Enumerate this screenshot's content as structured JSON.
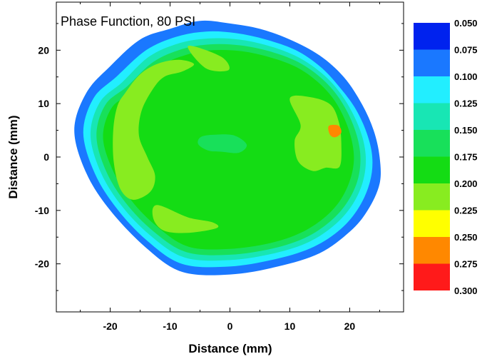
{
  "chart_data": {
    "type": "heatmap",
    "title": "Phase Function, 80 PSI",
    "xlabel": "Distance (mm)",
    "ylabel": "Distance (mm)",
    "xlim": [
      -29,
      29
    ],
    "ylim": [
      -29,
      29
    ],
    "x_ticks": [
      -20,
      -10,
      0,
      10,
      20
    ],
    "y_ticks": [
      20,
      10,
      0,
      -10,
      -20
    ],
    "x_tick_labels": [
      "-20",
      "-10",
      "0",
      "10",
      "20"
    ],
    "y_tick_labels": [
      "20",
      "10",
      "0",
      "-10",
      "-20"
    ],
    "grid": false,
    "legend_placement": "right",
    "colorbar": {
      "levels": [
        "0.050",
        "0.075",
        "0.100",
        "0.125",
        "0.150",
        "0.175",
        "0.200",
        "0.225",
        "0.250",
        "0.275",
        "0.300"
      ],
      "colors": [
        "#0022ee",
        "#1a78ff",
        "#22eeff",
        "#18e6b4",
        "#18e05a",
        "#14dc14",
        "#88ec20",
        "#ffff00",
        "#ff8800",
        "#ff1a1a"
      ]
    },
    "contours": [
      {
        "level": 0.075,
        "points": [
          [
            -20,
            17
          ],
          [
            -15,
            22
          ],
          [
            -10,
            24
          ],
          [
            -5,
            25.5
          ],
          [
            0,
            25
          ],
          [
            5,
            24
          ],
          [
            10,
            22
          ],
          [
            15,
            19
          ],
          [
            19,
            15
          ],
          [
            22,
            10
          ],
          [
            24,
            5
          ],
          [
            25,
            0
          ],
          [
            25,
            -5
          ],
          [
            23,
            -10
          ],
          [
            20,
            -14
          ],
          [
            15,
            -18
          ],
          [
            8,
            -20.5
          ],
          [
            0,
            -22
          ],
          [
            -8,
            -21.5
          ],
          [
            -14,
            -17
          ],
          [
            -20,
            -10
          ],
          [
            -24,
            -3
          ],
          [
            -26,
            5
          ],
          [
            -24,
            12
          ]
        ]
      },
      {
        "level": 0.1,
        "points": [
          [
            -19,
            15
          ],
          [
            -14,
            20
          ],
          [
            -9,
            22.5
          ],
          [
            -4,
            23.5
          ],
          [
            1,
            23.2
          ],
          [
            6,
            22
          ],
          [
            11,
            20
          ],
          [
            15,
            17
          ],
          [
            18,
            13.5
          ],
          [
            21,
            9
          ],
          [
            23,
            4
          ],
          [
            23.8,
            -0.5
          ],
          [
            23.3,
            -5
          ],
          [
            21.5,
            -9.5
          ],
          [
            18.5,
            -13.5
          ],
          [
            14,
            -16.8
          ],
          [
            8,
            -19
          ],
          [
            0,
            -20.5
          ],
          [
            -8,
            -20
          ],
          [
            -14,
            -15.5
          ],
          [
            -19,
            -9.5
          ],
          [
            -22.6,
            -3
          ],
          [
            -24.5,
            4.5
          ],
          [
            -22.8,
            11
          ]
        ]
      },
      {
        "level": 0.125,
        "points": [
          [
            -18,
            14
          ],
          [
            -13.5,
            18.8
          ],
          [
            -8.5,
            21.3
          ],
          [
            -3.5,
            22.2
          ],
          [
            1.5,
            22
          ],
          [
            6.5,
            20.8
          ],
          [
            11.2,
            18.8
          ],
          [
            15,
            16
          ],
          [
            18,
            12.6
          ],
          [
            20.4,
            8.4
          ],
          [
            22.1,
            3.8
          ],
          [
            22.7,
            -0.6
          ],
          [
            22.1,
            -5
          ],
          [
            20.3,
            -9.2
          ],
          [
            17.4,
            -12.8
          ],
          [
            13.2,
            -15.9
          ],
          [
            7.5,
            -18
          ],
          [
            0,
            -19.3
          ],
          [
            -7.6,
            -18.8
          ],
          [
            -13.4,
            -14.6
          ],
          [
            -18.2,
            -9
          ],
          [
            -21.6,
            -2.8
          ],
          [
            -23.3,
            4.2
          ],
          [
            -21.7,
            10.3
          ]
        ]
      },
      {
        "level": 0.15,
        "points": [
          [
            -17.2,
            13.2
          ],
          [
            -12.8,
            17.8
          ],
          [
            -8,
            20.2
          ],
          [
            -3.2,
            21.1
          ],
          [
            1.8,
            20.9
          ],
          [
            6.6,
            19.8
          ],
          [
            11,
            18
          ],
          [
            14.7,
            15.3
          ],
          [
            17.6,
            12
          ],
          [
            19.8,
            8
          ],
          [
            21.3,
            3.6
          ],
          [
            21.8,
            -0.6
          ],
          [
            21.2,
            -4.8
          ],
          [
            19.4,
            -8.8
          ],
          [
            16.6,
            -12.2
          ],
          [
            12.6,
            -15.1
          ],
          [
            7.2,
            -17.1
          ],
          [
            0,
            -18.3
          ],
          [
            -7.3,
            -17.8
          ],
          [
            -12.8,
            -13.9
          ],
          [
            -17.4,
            -8.6
          ],
          [
            -20.7,
            -2.6
          ],
          [
            -22.3,
            4
          ],
          [
            -20.8,
            9.8
          ]
        ]
      },
      {
        "level": 0.175,
        "points": [
          [
            -16.2,
            12.2
          ],
          [
            -12,
            16.8
          ],
          [
            -7.4,
            19.1
          ],
          [
            -2.8,
            20
          ],
          [
            2,
            19.8
          ],
          [
            6.6,
            18.7
          ],
          [
            10.8,
            17
          ],
          [
            14.2,
            14.5
          ],
          [
            17,
            11.3
          ],
          [
            19,
            7.5
          ],
          [
            20.3,
            3.3
          ],
          [
            20.7,
            -0.6
          ],
          [
            20,
            -4.5
          ],
          [
            18.3,
            -8.3
          ],
          [
            15.6,
            -11.5
          ],
          [
            11.8,
            -14.2
          ],
          [
            6.8,
            -16.1
          ],
          [
            0,
            -17.2
          ],
          [
            -6.9,
            -16.8
          ],
          [
            -12.1,
            -13.1
          ],
          [
            -16.5,
            -8.1
          ],
          [
            -19.6,
            -2.4
          ],
          [
            -21.2,
            3.8
          ],
          [
            -19.7,
            9.3
          ]
        ]
      },
      {
        "level": 0.2,
        "points": [
          [
            -17.5,
            12
          ],
          [
            -15,
            15.5
          ],
          [
            -12,
            17.5
          ],
          [
            -8.5,
            18.2
          ],
          [
            -6,
            17.4
          ],
          [
            -8,
            16
          ],
          [
            -11,
            15
          ],
          [
            -13,
            12.5
          ],
          [
            -14.8,
            8.5
          ],
          [
            -15.2,
            4
          ],
          [
            -13.8,
            0
          ],
          [
            -12.5,
            -3.5
          ],
          [
            -13.3,
            -6.5
          ],
          [
            -16.2,
            -8
          ],
          [
            -18.3,
            -6
          ],
          [
            -19.4,
            -1
          ],
          [
            -19.5,
            5
          ],
          [
            -18.8,
            9.5
          ]
        ]
      },
      {
        "level": 0.2,
        "points": [
          [
            -7,
            20.8
          ],
          [
            -1.5,
            18.8
          ],
          [
            -0.2,
            16.3
          ],
          [
            -4,
            16.6
          ]
        ]
      },
      {
        "level": 0.2,
        "points": [
          [
            -12.2,
            -9
          ],
          [
            -7,
            -11.3
          ],
          [
            -3,
            -12.2
          ],
          [
            -2.2,
            -13.3
          ],
          [
            -7,
            -14.2
          ],
          [
            -11,
            -13.8
          ],
          [
            -12.8,
            -11.5
          ]
        ]
      },
      {
        "level": 0.2,
        "points": [
          [
            10,
            11
          ],
          [
            13.5,
            11.2
          ],
          [
            16.8,
            9.8
          ],
          [
            18.2,
            6.5
          ],
          [
            18.6,
            2.5
          ],
          [
            18.3,
            -1.8
          ],
          [
            16,
            -2
          ],
          [
            13.8,
            -2.6
          ],
          [
            11.4,
            -0.8
          ],
          [
            10.8,
            3
          ],
          [
            11.8,
            6
          ]
        ]
      },
      {
        "level": 0.25,
        "points": [
          [
            16.5,
            5.8
          ],
          [
            18.1,
            5.9
          ],
          [
            18.6,
            4.6
          ],
          [
            17.6,
            3.7
          ],
          [
            16.7,
            4.2
          ]
        ]
      }
    ],
    "low_patches": [
      {
        "level": 0.15,
        "points": [
          [
            -4.8,
            3.8
          ],
          [
            -2.2,
            4.2
          ],
          [
            0.8,
            4
          ],
          [
            2.8,
            2.3
          ],
          [
            1.5,
            0.8
          ],
          [
            -1.5,
            1
          ],
          [
            -3.6,
            1.2
          ],
          [
            -5.3,
            2.4
          ]
        ]
      }
    ]
  }
}
